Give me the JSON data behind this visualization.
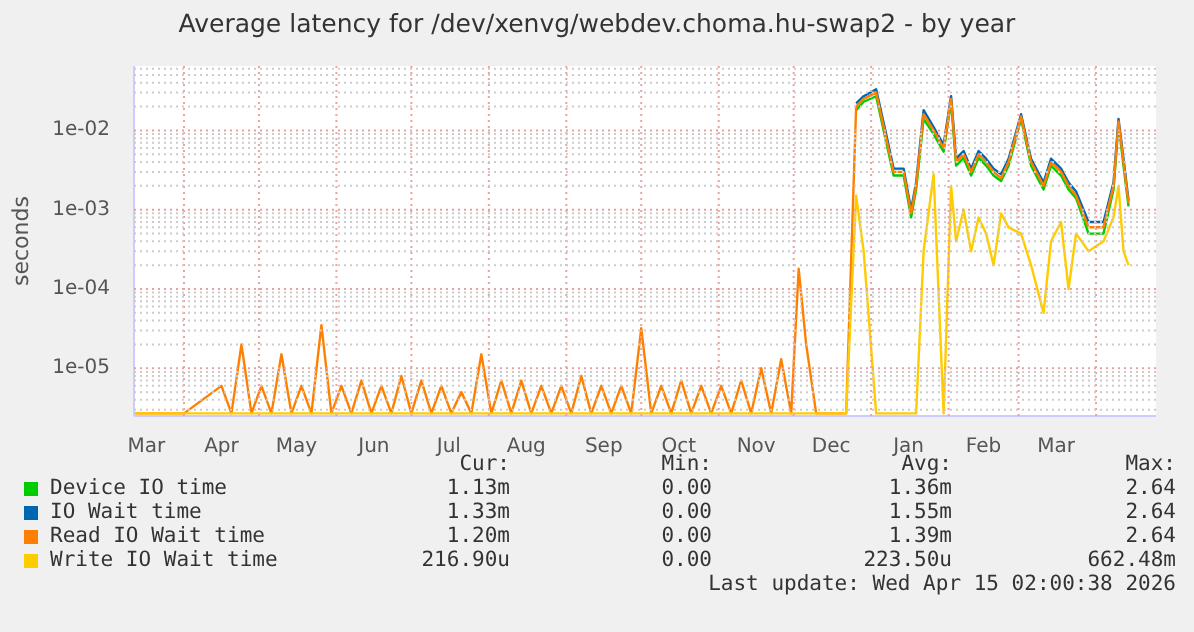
{
  "chart_data": {
    "type": "line",
    "title": "Average latency for /dev/xenvg/webdev.choma.hu-swap2 - by year",
    "ylabel": "seconds",
    "log": "y",
    "grid": true,
    "legend": "bottom",
    "marker": "none",
    "line_style": "solid",
    "xlim": [
      "2025-03-12",
      "2026-04-25"
    ],
    "xticks": [
      {
        "value": "2025-03-17",
        "label": "Mar"
      },
      {
        "value": "2025-04-01",
        "label": null
      },
      {
        "value": "2025-04-16",
        "label": "Apr"
      },
      {
        "value": "2025-05-01",
        "label": null
      },
      {
        "value": "2025-05-16",
        "label": "May"
      },
      {
        "value": "2025-06-01",
        "label": null
      },
      {
        "value": "2025-06-16",
        "label": "Jun"
      },
      {
        "value": "2025-07-01",
        "label": null
      },
      {
        "value": "2025-07-16",
        "label": "Jul"
      },
      {
        "value": "2025-08-01",
        "label": null
      },
      {
        "value": "2025-08-16",
        "label": "Aug"
      },
      {
        "value": "2025-09-01",
        "label": null
      },
      {
        "value": "2025-09-16",
        "label": "Sep"
      },
      {
        "value": "2025-10-01",
        "label": null
      },
      {
        "value": "2025-10-16",
        "label": "Oct"
      },
      {
        "value": "2025-11-01",
        "label": null
      },
      {
        "value": "2025-11-16",
        "label": "Nov"
      },
      {
        "value": "2025-12-01",
        "label": null
      },
      {
        "value": "2025-12-16",
        "label": "Dec"
      },
      {
        "value": "2026-01-01",
        "label": null
      },
      {
        "value": "2026-01-16",
        "label": "Jan"
      },
      {
        "value": "2026-02-01",
        "label": null
      },
      {
        "value": "2026-02-15",
        "label": "Feb"
      },
      {
        "value": "2026-03-01",
        "label": null
      },
      {
        "value": "2026-03-16",
        "label": "Mar"
      },
      {
        "value": "2026-04-01",
        "label": null
      }
    ],
    "ylim": [
      2.5e-06,
      0.065
    ],
    "yticks": [
      {
        "value": 3e-06,
        "label": null
      },
      {
        "value": 4e-06,
        "label": null
      },
      {
        "value": 5e-06,
        "label": null
      },
      {
        "value": 6e-06,
        "label": null
      },
      {
        "value": 7e-06,
        "label": null
      },
      {
        "value": 8e-06,
        "label": null
      },
      {
        "value": 9e-06,
        "label": null
      },
      {
        "value": 1e-05,
        "label": "1e-05"
      },
      {
        "value": 2e-05,
        "label": null
      },
      {
        "value": 3e-05,
        "label": null
      },
      {
        "value": 4e-05,
        "label": null
      },
      {
        "value": 5e-05,
        "label": null
      },
      {
        "value": 6e-05,
        "label": null
      },
      {
        "value": 7e-05,
        "label": null
      },
      {
        "value": 8e-05,
        "label": null
      },
      {
        "value": 9e-05,
        "label": null
      },
      {
        "value": 0.0001,
        "label": "1e-04"
      },
      {
        "value": 0.0002,
        "label": null
      },
      {
        "value": 0.0003,
        "label": null
      },
      {
        "value": 0.0004,
        "label": null
      },
      {
        "value": 0.0005,
        "label": null
      },
      {
        "value": 0.0006,
        "label": null
      },
      {
        "value": 0.0007,
        "label": null
      },
      {
        "value": 0.0008,
        "label": null
      },
      {
        "value": 0.0009,
        "label": null
      },
      {
        "value": 0.001,
        "label": "1e-03"
      },
      {
        "value": 0.002,
        "label": null
      },
      {
        "value": 0.003,
        "label": null
      },
      {
        "value": 0.004,
        "label": null
      },
      {
        "value": 0.005,
        "label": null
      },
      {
        "value": 0.006,
        "label": null
      },
      {
        "value": 0.007,
        "label": null
      },
      {
        "value": 0.008,
        "label": null
      },
      {
        "value": 0.009,
        "label": null
      },
      {
        "value": 0.01,
        "label": "1e-02"
      },
      {
        "value": 0.02,
        "label": null
      },
      {
        "value": 0.03,
        "label": null
      },
      {
        "value": 0.04,
        "label": null
      },
      {
        "value": 0.05,
        "label": null
      },
      {
        "value": 0.06,
        "label": null
      }
    ],
    "x": [
      "2025-03-12",
      "2025-04-01",
      "2025-04-16",
      "2025-04-20",
      "2025-04-24",
      "2025-04-28",
      "2025-05-02",
      "2025-05-06",
      "2025-05-10",
      "2025-05-14",
      "2025-05-18",
      "2025-05-22",
      "2025-05-26",
      "2025-05-30",
      "2025-06-03",
      "2025-06-07",
      "2025-06-11",
      "2025-06-15",
      "2025-06-19",
      "2025-06-23",
      "2025-06-27",
      "2025-07-01",
      "2025-07-05",
      "2025-07-09",
      "2025-07-13",
      "2025-07-17",
      "2025-07-21",
      "2025-07-25",
      "2025-07-29",
      "2025-08-02",
      "2025-08-06",
      "2025-08-10",
      "2025-08-14",
      "2025-08-18",
      "2025-08-22",
      "2025-08-26",
      "2025-08-30",
      "2025-09-03",
      "2025-09-07",
      "2025-09-11",
      "2025-09-15",
      "2025-09-19",
      "2025-09-23",
      "2025-09-27",
      "2025-10-01",
      "2025-10-05",
      "2025-10-09",
      "2025-10-13",
      "2025-10-17",
      "2025-10-21",
      "2025-10-25",
      "2025-10-29",
      "2025-11-02",
      "2025-11-06",
      "2025-11-10",
      "2025-11-14",
      "2025-11-18",
      "2025-11-22",
      "2025-11-26",
      "2025-11-30",
      "2025-12-03",
      "2025-12-06",
      "2025-12-10",
      "2025-12-16",
      "2025-12-22",
      "2025-12-26",
      "2025-12-29",
      "2026-01-03",
      "2026-01-07",
      "2026-01-10",
      "2026-01-14",
      "2026-01-17",
      "2026-01-19",
      "2026-01-22",
      "2026-01-26",
      "2026-01-30",
      "2026-02-02",
      "2026-02-04",
      "2026-02-07",
      "2026-02-10",
      "2026-02-13",
      "2026-02-16",
      "2026-02-19",
      "2026-02-22",
      "2026-02-25",
      "2026-03-02",
      "2026-03-06",
      "2026-03-11",
      "2026-03-14",
      "2026-03-18",
      "2026-03-21",
      "2026-03-24",
      "2026-03-29",
      "2026-04-04",
      "2026-04-08",
      "2026-04-10",
      "2026-04-12",
      "2026-04-14"
    ],
    "series": [
      {
        "name": "Device IO time",
        "color": "#00cc00",
        "values": [
          null,
          null,
          null,
          null,
          null,
          null,
          null,
          null,
          null,
          null,
          null,
          null,
          null,
          null,
          null,
          null,
          null,
          null,
          null,
          null,
          null,
          null,
          null,
          null,
          null,
          null,
          null,
          null,
          null,
          null,
          null,
          null,
          null,
          null,
          null,
          null,
          null,
          null,
          null,
          null,
          null,
          null,
          null,
          null,
          null,
          null,
          null,
          null,
          null,
          null,
          null,
          null,
          null,
          null,
          null,
          null,
          null,
          null,
          null,
          null,
          null,
          null,
          null,
          null,
          null,
          0.018,
          0.023,
          0.027,
          0.0072,
          0.0027,
          0.0027,
          0.0008,
          0.0018,
          0.014,
          0.009,
          0.0054,
          0.023,
          0.0036,
          0.0045,
          0.0027,
          0.0045,
          0.0036,
          0.0027,
          0.0023,
          0.0036,
          0.014,
          0.0036,
          0.0018,
          0.0036,
          0.0027,
          0.0018,
          0.0014,
          0.0005,
          0.0005,
          0.0018,
          0.012,
          0.0036,
          0.0011
        ]
      },
      {
        "name": "IO Wait time",
        "color": "#0066b3",
        "values": [
          null,
          null,
          null,
          null,
          null,
          null,
          null,
          null,
          null,
          null,
          null,
          null,
          null,
          null,
          null,
          null,
          null,
          null,
          null,
          null,
          null,
          null,
          null,
          null,
          null,
          null,
          null,
          null,
          null,
          null,
          null,
          null,
          null,
          null,
          null,
          null,
          null,
          null,
          null,
          null,
          null,
          null,
          null,
          null,
          null,
          null,
          null,
          null,
          null,
          null,
          null,
          null,
          null,
          null,
          null,
          null,
          null,
          null,
          null,
          null,
          null,
          null,
          null,
          null,
          null,
          0.022,
          0.027,
          0.033,
          0.009,
          0.0033,
          0.0033,
          0.001,
          0.0022,
          0.018,
          0.011,
          0.0066,
          0.027,
          0.0044,
          0.0055,
          0.0033,
          0.0055,
          0.0044,
          0.0033,
          0.0028,
          0.0044,
          0.016,
          0.0044,
          0.0022,
          0.0044,
          0.0033,
          0.0022,
          0.0017,
          0.0007,
          0.0007,
          0.0022,
          0.014,
          0.0044,
          0.0013
        ]
      },
      {
        "name": "Read IO Wait time",
        "color": "#ff8000",
        "values": [
          2.7e-06,
          2.7e-06,
          6e-06,
          2.7e-06,
          2e-05,
          2.7e-06,
          6e-06,
          2.7e-06,
          1.5e-05,
          2.7e-06,
          6e-06,
          2.7e-06,
          3.5e-05,
          2.7e-06,
          6e-06,
          2.7e-06,
          7e-06,
          2.7e-06,
          6e-06,
          2.7e-06,
          8e-06,
          2.7e-06,
          7e-06,
          2.7e-06,
          6e-06,
          2.7e-06,
          5e-06,
          2.7e-06,
          1.5e-05,
          2.7e-06,
          7e-06,
          2.7e-06,
          7e-06,
          2.7e-06,
          6e-06,
          2.7e-06,
          6e-06,
          2.7e-06,
          8e-06,
          2.7e-06,
          6e-06,
          2.7e-06,
          6e-06,
          2.7e-06,
          3.2e-05,
          2.7e-06,
          6e-06,
          2.7e-06,
          7e-06,
          2.7e-06,
          6e-06,
          2.7e-06,
          6e-06,
          2.7e-06,
          7e-06,
          2.7e-06,
          1e-05,
          2.7e-06,
          1.3e-05,
          2.7e-06,
          0.00018,
          2e-05,
          2.7e-06,
          2.7e-06,
          2.7e-06,
          0.02,
          0.025,
          0.03,
          0.008,
          0.003,
          0.003,
          0.0009,
          0.002,
          0.016,
          0.01,
          0.006,
          0.025,
          0.004,
          0.005,
          0.003,
          0.005,
          0.004,
          0.003,
          0.0025,
          0.004,
          0.015,
          0.004,
          0.002,
          0.004,
          0.003,
          0.002,
          0.0015,
          0.0006,
          0.0006,
          0.002,
          0.013,
          0.004,
          0.0012
        ]
      },
      {
        "name": "Write IO Wait time",
        "color": "#ffcc00",
        "values": [
          2.7e-06,
          2.7e-06,
          2.7e-06,
          2.7e-06,
          2.7e-06,
          2.7e-06,
          2.7e-06,
          2.7e-06,
          2.7e-06,
          2.7e-06,
          2.7e-06,
          2.7e-06,
          2.7e-06,
          2.7e-06,
          2.7e-06,
          2.7e-06,
          2.7e-06,
          2.7e-06,
          2.7e-06,
          2.7e-06,
          2.7e-06,
          2.7e-06,
          2.7e-06,
          2.7e-06,
          2.7e-06,
          2.7e-06,
          2.7e-06,
          2.7e-06,
          2.7e-06,
          2.7e-06,
          2.7e-06,
          2.7e-06,
          2.7e-06,
          2.7e-06,
          2.7e-06,
          2.7e-06,
          2.7e-06,
          2.7e-06,
          2.7e-06,
          2.7e-06,
          2.7e-06,
          2.7e-06,
          2.7e-06,
          2.7e-06,
          2.7e-06,
          2.7e-06,
          2.7e-06,
          2.7e-06,
          2.7e-06,
          2.7e-06,
          2.7e-06,
          2.7e-06,
          2.7e-06,
          2.7e-06,
          2.7e-06,
          2.7e-06,
          2.7e-06,
          2.7e-06,
          2.7e-06,
          2.7e-06,
          2.7e-06,
          2.7e-06,
          2.7e-06,
          2.7e-06,
          2.7e-06,
          0.0015,
          0.0003,
          2.7e-06,
          2.7e-06,
          2.7e-06,
          2.7e-06,
          2.7e-06,
          2.7e-06,
          0.0003,
          0.0028,
          2.7e-06,
          0.002,
          0.0004,
          0.001,
          0.0003,
          0.0008,
          0.0005,
          0.0002,
          0.0009,
          0.0006,
          0.0005,
          0.0002,
          5e-05,
          0.0004,
          0.0007,
          0.0001,
          0.0005,
          0.0003,
          0.0004,
          0.0008,
          0.002,
          0.0003,
          0.0002
        ]
      }
    ],
    "annotations": [
      "Cur:",
      "Min:",
      "Avg:",
      "Max:",
      "1.13m",
      "0.00",
      "1.36m",
      "2.64",
      "1.33m",
      "0.00",
      "1.55m",
      "2.64",
      "1.20m",
      "0.00",
      "1.39m",
      "2.64",
      "216.90u",
      "0.00",
      "223.50u",
      "662.48m",
      "Last update: Wed Apr 15 02:00:38 2026"
    ]
  }
}
